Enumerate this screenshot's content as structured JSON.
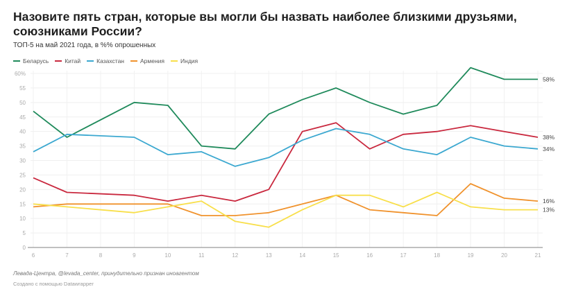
{
  "title": "Назовите пять стран, которые вы могли бы назвать наиболее близкими друзьями, союзниками России?",
  "subtitle": "ТОП-5 на май 2021 года, в %% опрошенных",
  "footer": {
    "source": "Левада-Центра, @levada_center, принудительно признан иноагентом",
    "credit": "Создано с помощью Datawrapper"
  },
  "chart_data": {
    "type": "line",
    "title": "Назовите пять стран, которые вы могли бы назвать наиболее близкими друзьями, союзниками России?",
    "subtitle": "ТОП-5 на май 2021 года, в %% опрошенных",
    "xlabel": "",
    "ylabel": "",
    "x_ticks": [
      "6",
      "7",
      "8",
      "9",
      "10",
      "11",
      "12",
      "13",
      "14",
      "15",
      "16",
      "17",
      "18",
      "19",
      "20",
      "21"
    ],
    "y_ticks": [
      "0",
      "5",
      "10",
      "15",
      "20",
      "25",
      "30",
      "35",
      "40",
      "45",
      "50",
      "55",
      "60%"
    ],
    "ylim": [
      0,
      60
    ],
    "xlim": [
      6,
      21
    ],
    "grid": true,
    "legend_position": "top-left",
    "x": [
      6,
      7,
      9,
      10,
      11,
      12,
      13,
      14,
      15,
      16,
      17,
      18,
      19,
      20,
      21
    ],
    "series": [
      {
        "name": "Беларусь",
        "color": "#1f8a5b",
        "values": [
          47,
          38,
          50,
          49,
          35,
          34,
          46,
          51,
          55,
          50,
          46,
          49,
          62,
          58,
          58
        ],
        "end_label": "58%"
      },
      {
        "name": "Китай",
        "color": "#c9283e",
        "values": [
          24,
          19,
          18,
          16,
          18,
          16,
          20,
          40,
          43,
          34,
          39,
          40,
          42,
          40,
          38
        ],
        "end_label": "38%"
      },
      {
        "name": "Казахстан",
        "color": "#3ba8d0",
        "values": [
          33,
          39,
          38,
          32,
          33,
          28,
          31,
          37,
          41,
          39,
          34,
          32,
          38,
          35,
          34
        ],
        "end_label": "34%"
      },
      {
        "name": "Армения",
        "color": "#f0922c",
        "values": [
          14,
          15,
          15,
          15,
          11,
          11,
          12,
          15,
          18,
          13,
          12,
          11,
          22,
          17,
          16
        ],
        "end_label": "16%"
      },
      {
        "name": "Индия",
        "color": "#f8df4a",
        "values": [
          15,
          14,
          12,
          14,
          16,
          9,
          7,
          13,
          18,
          18,
          14,
          19,
          14,
          13,
          13
        ],
        "end_label": "13%"
      }
    ]
  }
}
